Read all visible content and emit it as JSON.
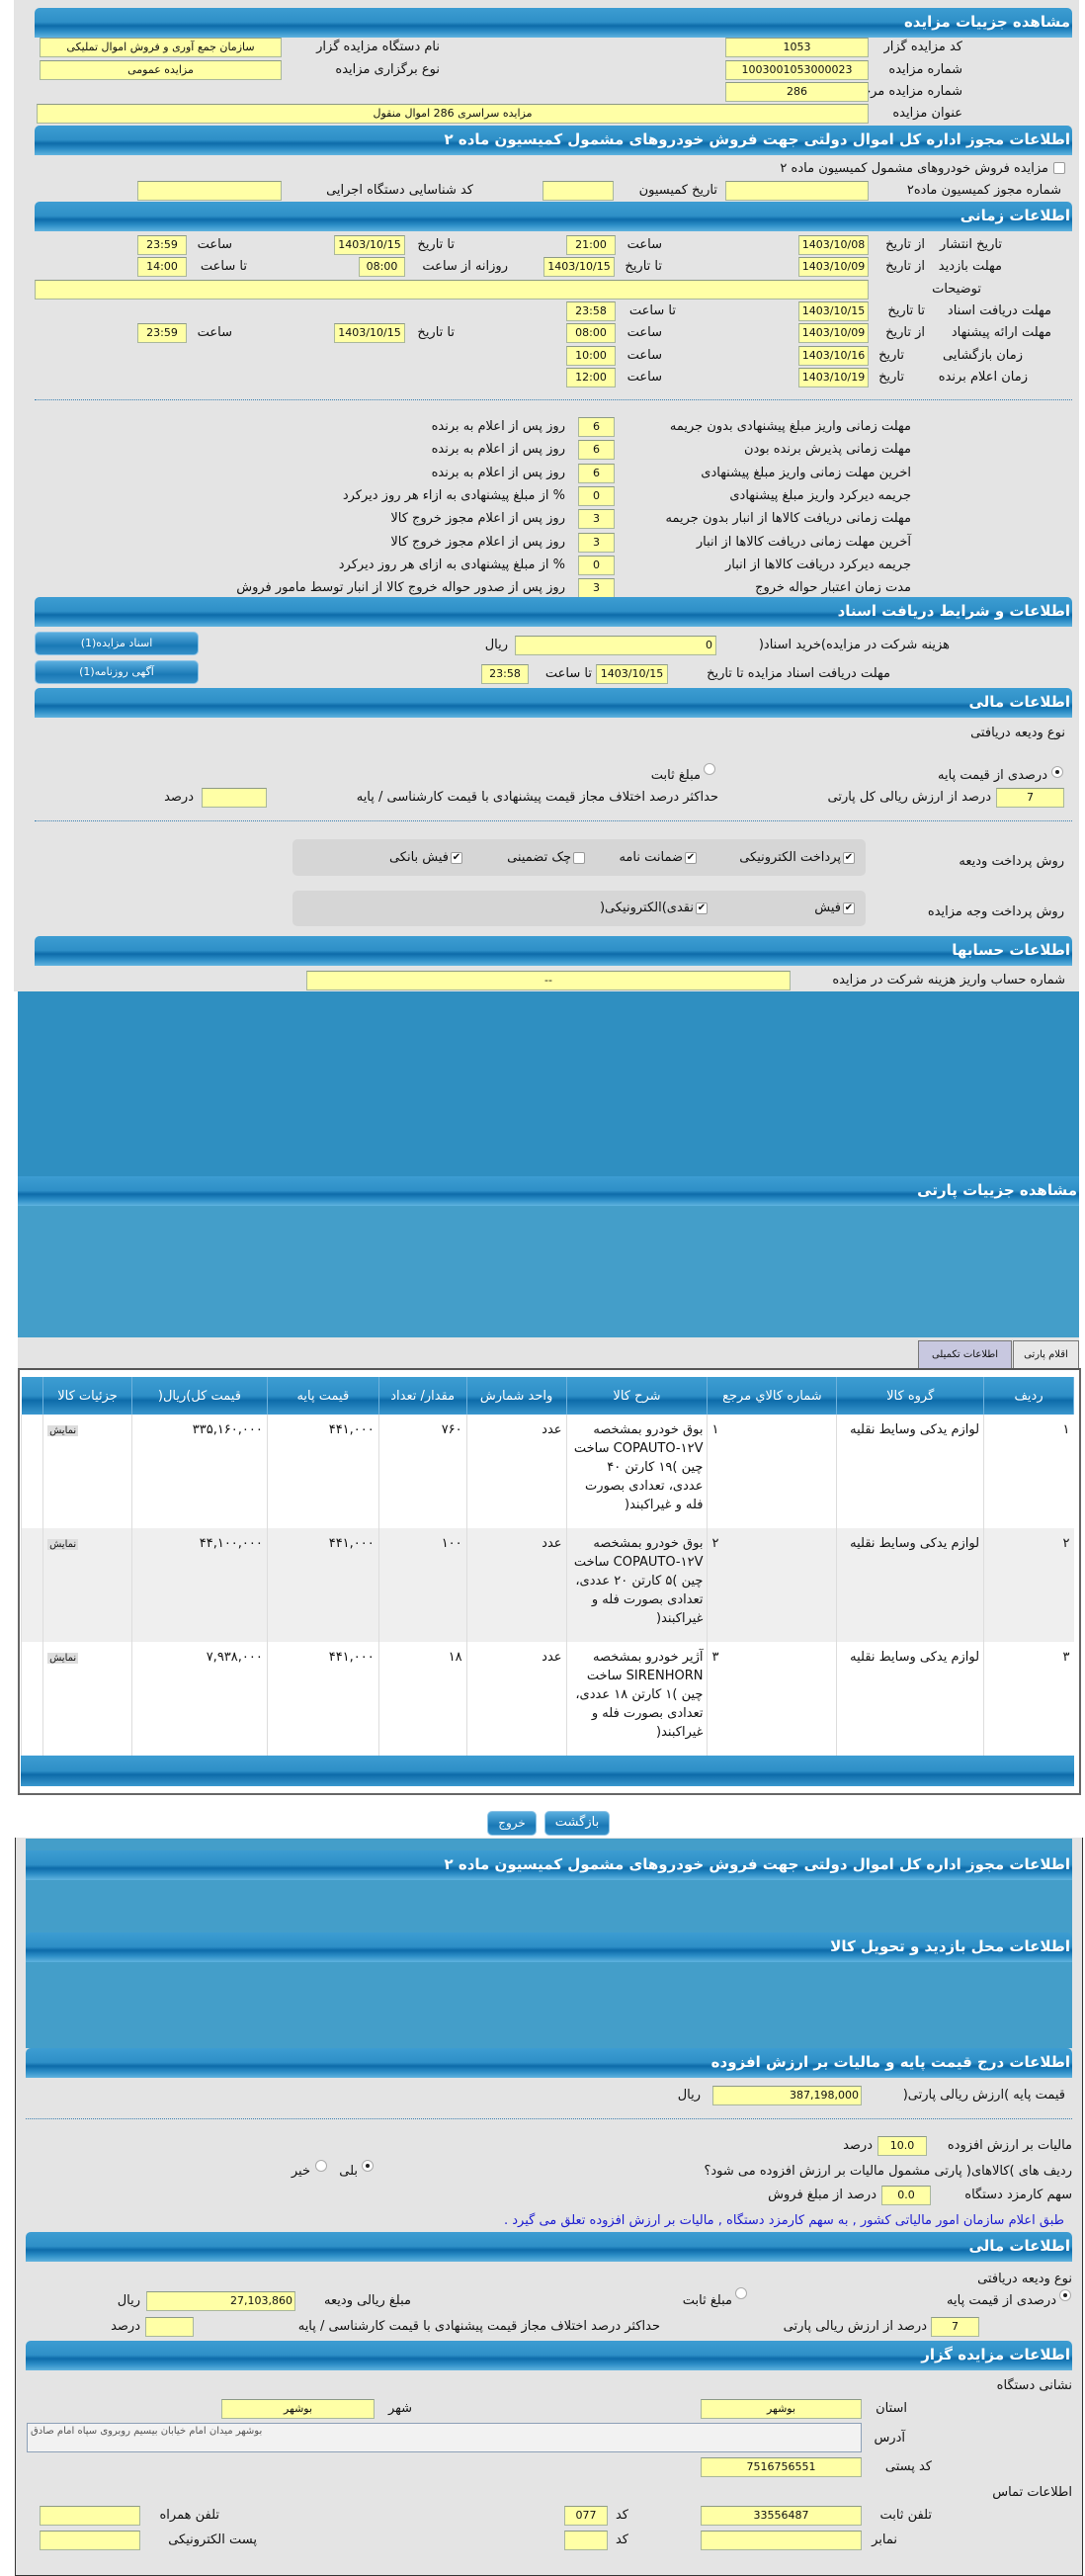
{
  "colors": {
    "header": "#1c7fb8",
    "input": "#ffffa6",
    "panel": "#e4e4e4",
    "note": "#1a1ad0",
    "tab_active": "#c8c8e0"
  },
  "s1": {
    "title": "مشاهده جزییات مزایده",
    "code_label": "کد مزایده گزار",
    "code": "1053",
    "org_label": "نام دستگاه مزایده گزار",
    "org": "سازمان جمع آوری و فروش اموال تملیکی",
    "num_label": "شماره مزایده",
    "num": "1003001053000023",
    "type_label": "نوع برگزاری مزایده",
    "type": "مزایده عمومی",
    "ref_label": "شماره مزایده مرجع",
    "ref": "286",
    "subject_label": "عنوان مزایده",
    "subject": "مزایده سراسری 286 اموال منقول"
  },
  "s2": {
    "title": "اطلاعات مجوز اداره کل اموال دولتی جهت فروش خودروهای مشمول کمیسیون ماده ۲",
    "check_label": "مزایده فروش خودروهای مشمول کمیسیون ماده ۲",
    "checked": false,
    "permit_label": "شماره مجوز کمیسیون ماده۲",
    "date_label": "تاریخ کمیسیون",
    "exec_label": "کد شناسایی دستگاه اجرایی"
  },
  "time": {
    "title": "اطلاعات زمانی",
    "from_date": "از تاریخ",
    "to_date": "تا تاریخ",
    "date": "تاریخ",
    "hour": "ساعت",
    "to_hour": "تا ساعت",
    "daily_from": "روزانه از ساعت",
    "publish": {
      "label": "تاریخ انتشار",
      "from": "1403/10/08",
      "from_time": "21:00",
      "to": "1403/10/15",
      "to_time": "23:59"
    },
    "visit": {
      "label": "مهلت بازدید",
      "from": "1403/10/09",
      "to": "1403/10/15",
      "daily_from": "08:00",
      "daily_to": "14:00"
    },
    "desc_label": "توضیحات",
    "desc": "",
    "docs": {
      "label": "مهلت دریافت اسناد",
      "to": "1403/10/15",
      "to_time": "23:58"
    },
    "offer": {
      "label": "مهلت ارائه پیشنهاد",
      "from": "1403/10/09",
      "from_time": "08:00",
      "to": "1403/10/15",
      "to_time": "23:59"
    },
    "opening": {
      "label": "زمان بازگشایی",
      "date": "1403/10/16",
      "time": "10:00"
    },
    "winner": {
      "label": "زمان اعلام برنده",
      "date": "1403/10/19",
      "time": "12:00"
    }
  },
  "deadlines": [
    {
      "label": "مهلت زمانی واریز مبلغ پیشنهادی بدون جریمه",
      "value": "6",
      "suffix": "روز پس از اعلام به برنده"
    },
    {
      "label": "مهلت زمانی پذیرش برنده بودن",
      "value": "6",
      "suffix": "روز پس از اعلام به برنده"
    },
    {
      "label": "اخرین مهلت زمانی واریز مبلغ پیشنهادی",
      "value": "6",
      "suffix": "روز پس از اعلام به برنده"
    },
    {
      "label": "جریمه دیرکرد واریز مبلغ پیشنهادی",
      "value": "0",
      "suffix": "% از مبلغ پیشنهادی به ازاء هر روز دیرکرد"
    },
    {
      "label": "مهلت زمانی دریافت کالاها از انبار بدون جریمه",
      "value": "3",
      "suffix": "روز پس از اعلام مجوز خروج کالا"
    },
    {
      "label": "آخرین مهلت زمانی دریافت کالاها از انبار",
      "value": "3",
      "suffix": "روز پس از اعلام مجوز خروج کالا"
    },
    {
      "label": "جریمه دیرکرد دریافت کالاها از انبار",
      "value": "0",
      "suffix": "% از مبلغ پیشنهادی به ازای هر روز دیرکرد"
    },
    {
      "label": "مدت زمان اعتبار حواله خروج",
      "value": "3",
      "suffix": "روز پس از صدور حواله خروج کالا از انبار توسط مامور فروش"
    }
  ],
  "docs": {
    "title": "اطلاعات و شرایط دریافت اسناد",
    "fee_label": "هزینه شرکت در مزایده)خرید اسناد(",
    "fee": "0",
    "rial": "ریال",
    "deadline_label": "مهلت دریافت اسناد مزایده تا تاریخ",
    "deadline": "1403/10/15",
    "to_hour": "تا ساعت",
    "deadline_time": "23:58",
    "btn_docs": "اسناد مزایده(1)",
    "btn_ad": "آگهی روزنامه(1)"
  },
  "finance": {
    "title": "اطلاعات مالی",
    "deposit_type": "نوع ودیعه دریافتی",
    "opt_percent": "درصدی از قیمت پایه",
    "opt_fixed": "مبلغ ثابت",
    "selected": "درصدی از قیمت پایه",
    "percent": "7",
    "percent_label": "درصد از ارزش ریالی کل پارتی",
    "max_diff_label": "حداکثر درصد اختلاف مجاز قیمت پیشنهادی با قیمت کارشناسی / پایه",
    "max_diff": "",
    "percent_unit": "درصد",
    "deposit_method_label": "روش پرداخت ودیعه",
    "deposit_methods": [
      {
        "label": "پرداخت الکترونیکی",
        "checked": true
      },
      {
        "label": "ضمانت نامه",
        "checked": true
      },
      {
        "label": "چک تضمینی",
        "checked": false
      },
      {
        "label": "فیش بانکی",
        "checked": true
      }
    ],
    "pay_method_label": "روش پرداخت وجه مزایده",
    "pay_methods": [
      {
        "label": "فیش",
        "checked": true
      },
      {
        "label": "نقدی)الکترونیکی(",
        "checked": true
      }
    ]
  },
  "accounts": {
    "title": "اطلاعات حسابها",
    "label": "شماره حساب واریز هزینه شرکت در مزایده",
    "value": "--"
  },
  "party": {
    "title": "مشاهده جزییات پارتی",
    "tabs": [
      {
        "label": "اقلام پارتی",
        "active": false
      },
      {
        "label": "اطلاعات تکمیلی",
        "active": true
      }
    ],
    "columns": [
      "ردیف",
      "گروه کالا",
      "شماره کالاي مرجع",
      "شرح کالا",
      "واحد شمارش",
      "مقدار/ تعداد",
      "قیمت پایه",
      "قیمت کل)ریال(",
      "جزئیات کالا"
    ],
    "rows": [
      {
        "row": "۱",
        "group": "لوازم یدکی وسایط نقلیه",
        "ref": "۱",
        "desc": "بوق خودرو بمشخصه COPAUTO-۱۲V ساخت چین )۱۹ کارتن ۴۰ عددی، تعدادی بصورت فله و غیراکبند(",
        "unit": "عدد",
        "qty": "۷۶۰",
        "base": "۴۴۱,۰۰۰",
        "total": "۳۳۵,۱۶۰,۰۰۰",
        "details": "نمایش"
      },
      {
        "row": "۲",
        "group": "لوازم یدکی وسایط نقلیه",
        "ref": "۲",
        "desc": "بوق خودرو بمشخصه COPAUTO-۱۲V ساخت چین )۵ کارتن ۲۰ عددی، تعدادی بصورت فله و غیراکبند(",
        "unit": "عدد",
        "qty": "۱۰۰",
        "base": "۴۴۱,۰۰۰",
        "total": "۴۴,۱۰۰,۰۰۰",
        "details": "نمایش"
      },
      {
        "row": "۳",
        "group": "لوازم یدکی وسایط نقلیه",
        "ref": "۳",
        "desc": "آژیر خودرو بمشخصه SIRENHORN ساخت چین )۱ کارتن ۱۸ عددی، تعدادی بصورت فله و غیراکبند(",
        "unit": "عدد",
        "qty": "۱۸",
        "base": "۴۴۱,۰۰۰",
        "total": "۷,۹۳۸,۰۰۰",
        "details": "نمایش"
      }
    ]
  },
  "actions": {
    "back": "بازگشت",
    "exit": "خروج"
  },
  "p2": {
    "permit_title": "اطلاعات مجوز اداره کل اموال دولتی جهت فروش خودروهای مشمول کمیسیون ماده ۲",
    "visit_title": "اطلاعات محل بازدید و تحویل کالا",
    "vat_title": "اطلاعات درج قیمت پایه و مالیات بر ارزش افزوده",
    "base_label": "قیمت پایه )ارزش ریالی پارتی(",
    "base": "387,198,000",
    "rial": "ریال",
    "vat_label": "مالیات بر ارزش افزوده",
    "vat": "10.0",
    "percent": "درصد",
    "vat_q": "ردیف های )کالاهای( پارتی مشمول مالیات بر ارزش افزوده می شود؟",
    "yes": "بلی",
    "no": "خیر",
    "vat_selected": "بلی",
    "fee_label": "سهم کارمزد دستگاه",
    "fee": "0.0",
    "fee_suffix": "درصد از مبلغ فروش",
    "note": "طبق اعلام سازمان امور مالیاتی کشور , به سهم کارمزد دستگاه , مالیات بر ارزش افزوده تعلق می گیرد .",
    "fin_title": "اطلاعات مالی",
    "deposit_type": "نوع ودیعه دریافتی",
    "opt_percent": "درصدی از قیمت پایه",
    "opt_fixed": "مبلغ ثابت",
    "deposit_amount_label": "مبلغ ریالی ودیعه",
    "deposit_amount": "27,103,860",
    "pct": "7",
    "pct_label": "درصد از ارزش ریالی پارتی",
    "max_diff_label": "حداکثر درصد اختلاف مجاز قیمت پیشنهادی با قیمت کارشناسی / پایه",
    "max_diff": "",
    "org_title": "اطلاعات مزایده گزار",
    "address_head": "نشانی دستگاه",
    "province_label": "استان",
    "province": "بوشهر",
    "city_label": "شهر",
    "city": "بوشهر",
    "address_label": "آدرس",
    "address": "بوشهر میدان امام خیابان بیسیم روبروی سپاه امام صادق",
    "postal_label": "کد پستی",
    "postal": "7516756551",
    "contact_head": "اطلاعات تماس",
    "phone_label": "تلفن ثابت",
    "phone": "33556487",
    "code_label": "کد",
    "phone_code": "077",
    "mobile_label": "تلفن همراه",
    "mobile": "",
    "fax_label": "نمابر",
    "fax": "",
    "fax_code": "",
    "email_label": "پست الکترونیکی",
    "email": ""
  }
}
